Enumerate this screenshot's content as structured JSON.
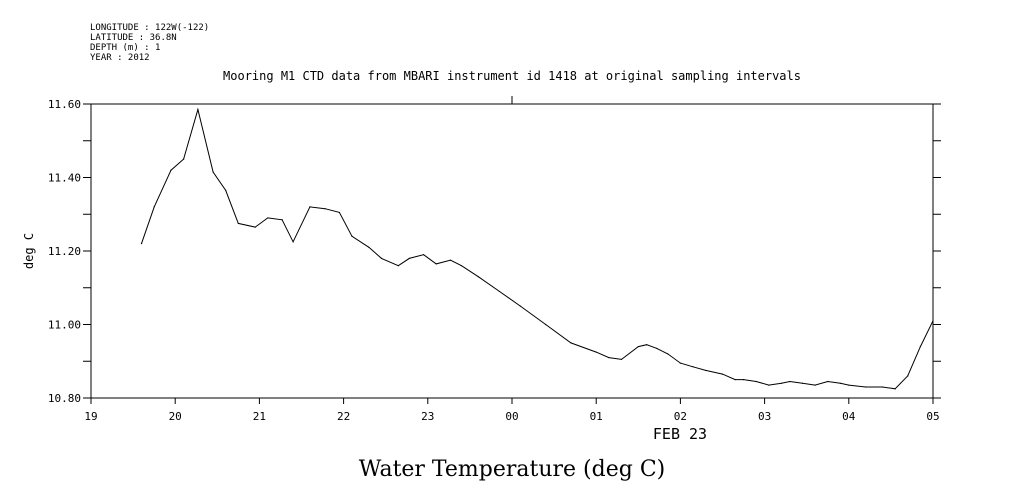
{
  "header": {
    "longitude": "LONGITUDE : 122W(-122)",
    "latitude": "LATITUDE : 36.8N",
    "depth": "DEPTH (m) : 1",
    "year": "YEAR : 2012"
  },
  "chart_data": {
    "type": "line",
    "title": "Mooring M1 CTD data from MBARI instrument id 1418 at original sampling intervals",
    "ylabel": "deg C",
    "xsublabel": "FEB 23",
    "bottom_title": "Water Temperature (deg C)",
    "x_tick_labels": [
      "19",
      "20",
      "21",
      "22",
      "23",
      "00",
      "01",
      "02",
      "03",
      "04",
      "05"
    ],
    "y_tick_labels": [
      "10.80",
      "11.00",
      "11.20",
      "11.40",
      "11.60"
    ],
    "ylim": [
      10.8,
      11.6
    ],
    "xlim": [
      0,
      10
    ],
    "grid": false,
    "series": [
      {
        "color": "#000000",
        "x": [
          0.6,
          0.75,
          0.95,
          1.1,
          1.27,
          1.45,
          1.6,
          1.75,
          1.95,
          2.1,
          2.27,
          2.4,
          2.6,
          2.78,
          2.95,
          3.1,
          3.3,
          3.45,
          3.65,
          3.78,
          3.95,
          4.1,
          4.27,
          4.4,
          4.6,
          4.85,
          5.1,
          5.4,
          5.7,
          6.0,
          6.15,
          6.3,
          6.5,
          6.6,
          6.72,
          6.85,
          7.0,
          7.15,
          7.3,
          7.5,
          7.65,
          7.75,
          7.9,
          8.05,
          8.2,
          8.3,
          8.45,
          8.6,
          8.75,
          8.9,
          9.0,
          9.2,
          9.4,
          9.55,
          9.7,
          9.85,
          10.0
        ],
        "y": [
          11.22,
          11.32,
          11.42,
          11.45,
          11.585,
          11.415,
          11.365,
          11.275,
          11.265,
          11.29,
          11.285,
          11.225,
          11.32,
          11.315,
          11.305,
          11.24,
          11.21,
          11.18,
          11.16,
          11.18,
          11.19,
          11.165,
          11.175,
          11.16,
          11.13,
          11.09,
          11.05,
          11.0,
          10.95,
          10.925,
          10.91,
          10.905,
          10.94,
          10.945,
          10.935,
          10.92,
          10.895,
          10.885,
          10.875,
          10.865,
          10.85,
          10.85,
          10.845,
          10.835,
          10.84,
          10.845,
          10.84,
          10.835,
          10.845,
          10.84,
          10.835,
          10.83,
          10.83,
          10.825,
          10.86,
          10.94,
          11.01
        ]
      }
    ]
  }
}
